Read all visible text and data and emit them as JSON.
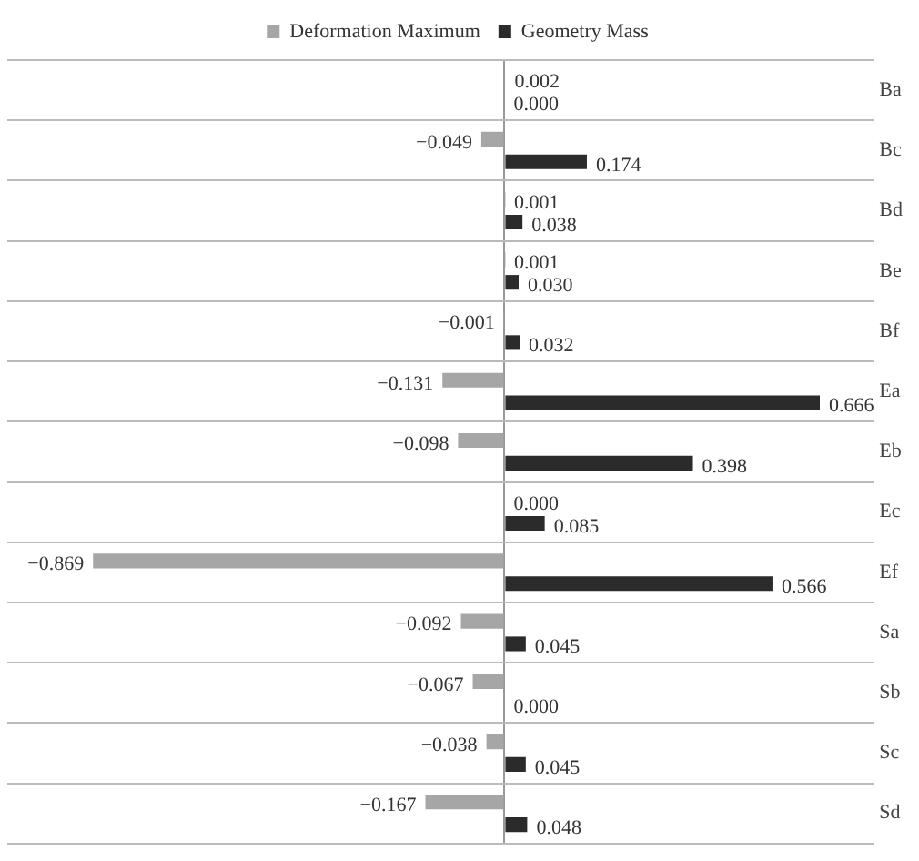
{
  "chart_data": {
    "type": "bar",
    "orientation": "horizontal",
    "categories": [
      "Ba",
      "Bc",
      "Bd",
      "Be",
      "Bf",
      "Ea",
      "Eb",
      "Ec",
      "Ef",
      "Sa",
      "Sb",
      "Sc",
      "Sd"
    ],
    "series": [
      {
        "name": "Deformation Maximum",
        "color": "#a6a6a6",
        "values": [
          0.002,
          -0.049,
          0.001,
          0.001,
          -0.001,
          -0.131,
          -0.098,
          0.0,
          -0.869,
          -0.092,
          -0.067,
          -0.038,
          -0.167
        ],
        "value_labels": [
          "0.002",
          "−0.049",
          "0.001",
          "0.001",
          "−0.001",
          "−0.131",
          "−0.098",
          "0.000",
          "−0.869",
          "−0.092",
          "−0.067",
          "−0.038",
          "−0.167"
        ]
      },
      {
        "name": "Geometry Mass",
        "color": "#2b2b2b",
        "values": [
          0.0,
          0.174,
          0.038,
          0.03,
          0.032,
          0.666,
          0.398,
          0.085,
          0.566,
          0.045,
          0.0,
          0.045,
          0.048
        ],
        "value_labels": [
          "0.000",
          "0.174",
          "0.038",
          "0.030",
          "0.032",
          "0.666",
          "0.398",
          "0.085",
          "0.566",
          "0.045",
          "0.000",
          "0.045",
          "0.048"
        ]
      }
    ],
    "xlim": [
      -1.05,
      0.78
    ],
    "tick_labels": "y",
    "grid": "y",
    "legend": "top"
  }
}
